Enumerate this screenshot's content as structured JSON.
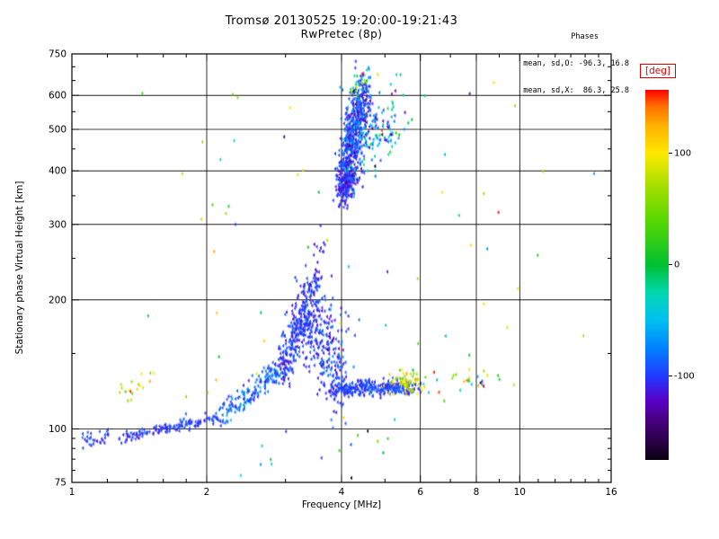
{
  "chart_data": {
    "type": "scatter",
    "title": "Tromsø 20130525 19:20:00-19:21:43",
    "subtitle": "RwPretec (8p)",
    "xlabel": "Frequency [MHz]",
    "ylabel": "Stationary phase Virtual Height [km]",
    "xscale": "log",
    "yscale": "log",
    "xlim": [
      1,
      16
    ],
    "ylim": [
      75,
      750
    ],
    "xticks": {
      "labeled": [
        [
          1,
          "1"
        ],
        [
          2,
          "2"
        ],
        [
          4,
          "4"
        ],
        [
          6,
          "6"
        ],
        [
          8,
          "8"
        ],
        [
          10,
          "10"
        ],
        [
          16,
          "16"
        ]
      ],
      "grid": [
        2,
        4,
        6,
        8,
        10
      ],
      "minor": [
        1.2,
        1.4,
        1.6,
        1.8,
        3,
        5,
        7,
        9,
        11,
        12,
        13,
        14,
        15
      ]
    },
    "yticks": {
      "labeled": [
        [
          75,
          "75"
        ],
        [
          100,
          "100"
        ],
        [
          200,
          "200"
        ],
        [
          300,
          "300"
        ],
        [
          400,
          "400"
        ],
        [
          500,
          "500"
        ],
        [
          600,
          "600"
        ],
        [
          750,
          "750"
        ]
      ],
      "grid": [
        100,
        200,
        300,
        400,
        500,
        600
      ],
      "minor": [
        80,
        85,
        90,
        95,
        150,
        250,
        350,
        450,
        550,
        650,
        700
      ]
    },
    "annotations": {
      "title": "Phases",
      "line_o": "mean, sd,O: -96.3, 16.8",
      "line_x": "mean, sd,X:  86.3, 25.8"
    },
    "colorbar": {
      "label": "[deg]",
      "min": -175,
      "max": 157,
      "ticks": [
        100,
        0,
        -100
      ],
      "stops": [
        [
          -175,
          "#0a0010"
        ],
        [
          -158,
          "#2a0048"
        ],
        [
          -140,
          "#46007e"
        ],
        [
          -122,
          "#5a00c8"
        ],
        [
          -100,
          "#2038ff"
        ],
        [
          -75,
          "#0080ff"
        ],
        [
          -50,
          "#00c0f0"
        ],
        [
          -25,
          "#00d8b0"
        ],
        [
          0,
          "#00c030"
        ],
        [
          40,
          "#58d800"
        ],
        [
          75,
          "#b0e000"
        ],
        [
          100,
          "#ffe800"
        ],
        [
          125,
          "#ffb000"
        ],
        [
          142,
          "#ff7000"
        ],
        [
          157,
          "#ff0000"
        ]
      ]
    },
    "cluster_fields": [
      "name",
      "n",
      "f_start",
      "f_end",
      "h_start",
      "h_end",
      "jitter_logf",
      "jitter_logh",
      "phase_mean",
      "phase_sd"
    ],
    "clusters": [
      [
        "e-start",
        30,
        1.07,
        1.22,
        93,
        97,
        0.01,
        0.01,
        -100,
        12
      ],
      [
        "e-trace-a",
        140,
        1.3,
        2.15,
        96,
        106,
        0.008,
        0.007,
        -100,
        10
      ],
      [
        "e-trace-b",
        170,
        2.15,
        2.95,
        107,
        138,
        0.01,
        0.012,
        -85,
        18
      ],
      [
        "cusp-rise",
        280,
        2.95,
        3.45,
        138,
        205,
        0.012,
        0.03,
        -100,
        12
      ],
      [
        "cusp-spike",
        28,
        3.42,
        3.58,
        205,
        272,
        0.006,
        0.025,
        -108,
        10
      ],
      [
        "cusp-descend",
        270,
        3.4,
        3.95,
        190,
        132,
        0.022,
        0.055,
        -100,
        14
      ],
      [
        "band",
        300,
        3.8,
        5.75,
        124,
        125,
        0.008,
        0.01,
        -98,
        9
      ],
      [
        "band-yellow",
        65,
        5.2,
        5.9,
        127,
        129,
        0.012,
        0.014,
        88,
        22
      ],
      [
        "left-yellow",
        18,
        1.28,
        1.47,
        120,
        128,
        0.01,
        0.012,
        92,
        28
      ],
      [
        "f-base",
        160,
        3.95,
        4.22,
        360,
        395,
        0.008,
        0.02,
        -108,
        10
      ],
      [
        "f-main",
        420,
        4.02,
        4.5,
        370,
        615,
        0.01,
        0.035,
        -100,
        12
      ],
      [
        "f-inner",
        140,
        4.15,
        4.4,
        430,
        560,
        0.015,
        0.045,
        -85,
        25
      ],
      [
        "f-right",
        130,
        4.45,
        5.15,
        435,
        545,
        0.02,
        0.045,
        -70,
        45
      ],
      [
        "f-top",
        25,
        4.15,
        4.5,
        618,
        662,
        0.01,
        0.015,
        -40,
        70
      ],
      [
        "band-right",
        28,
        6.0,
        9.2,
        128,
        131,
        0.03,
        0.015,
        10,
        90
      ],
      [
        "below-band",
        14,
        2.3,
        5.3,
        83,
        95,
        0.03,
        0.03,
        -50,
        80
      ],
      [
        "noise",
        85,
        1.45,
        14.5,
        240,
        260,
        0.06,
        0.33,
        45,
        75
      ]
    ]
  }
}
